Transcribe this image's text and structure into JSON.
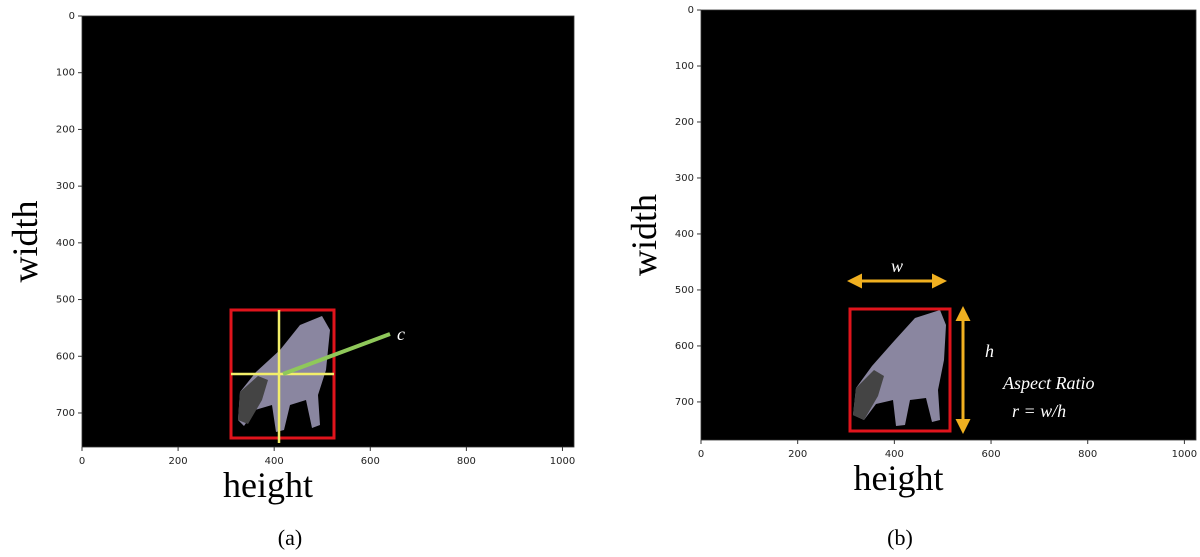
{
  "panels": [
    {
      "caption": "(a)",
      "xlabel": "height",
      "ylabel": "width",
      "xlim": [
        0,
        1024
      ],
      "ylim": [
        0,
        760
      ],
      "xticks": [
        0,
        200,
        400,
        600,
        800,
        1000
      ],
      "yticks": [
        0,
        100,
        200,
        300,
        400,
        500,
        600,
        700
      ],
      "annotations": [
        "c"
      ]
    },
    {
      "caption": "(b)",
      "xlabel": "height",
      "ylabel": "width",
      "xlim": [
        0,
        1024
      ],
      "ylim": [
        0,
        768
      ],
      "xticks": [
        0,
        200,
        400,
        600,
        800,
        1000
      ],
      "yticks": [
        0,
        100,
        200,
        300,
        400,
        500,
        600,
        700
      ],
      "annotations": [
        "w",
        "h",
        "Aspect Ratio",
        "r = w/h"
      ]
    }
  ]
}
